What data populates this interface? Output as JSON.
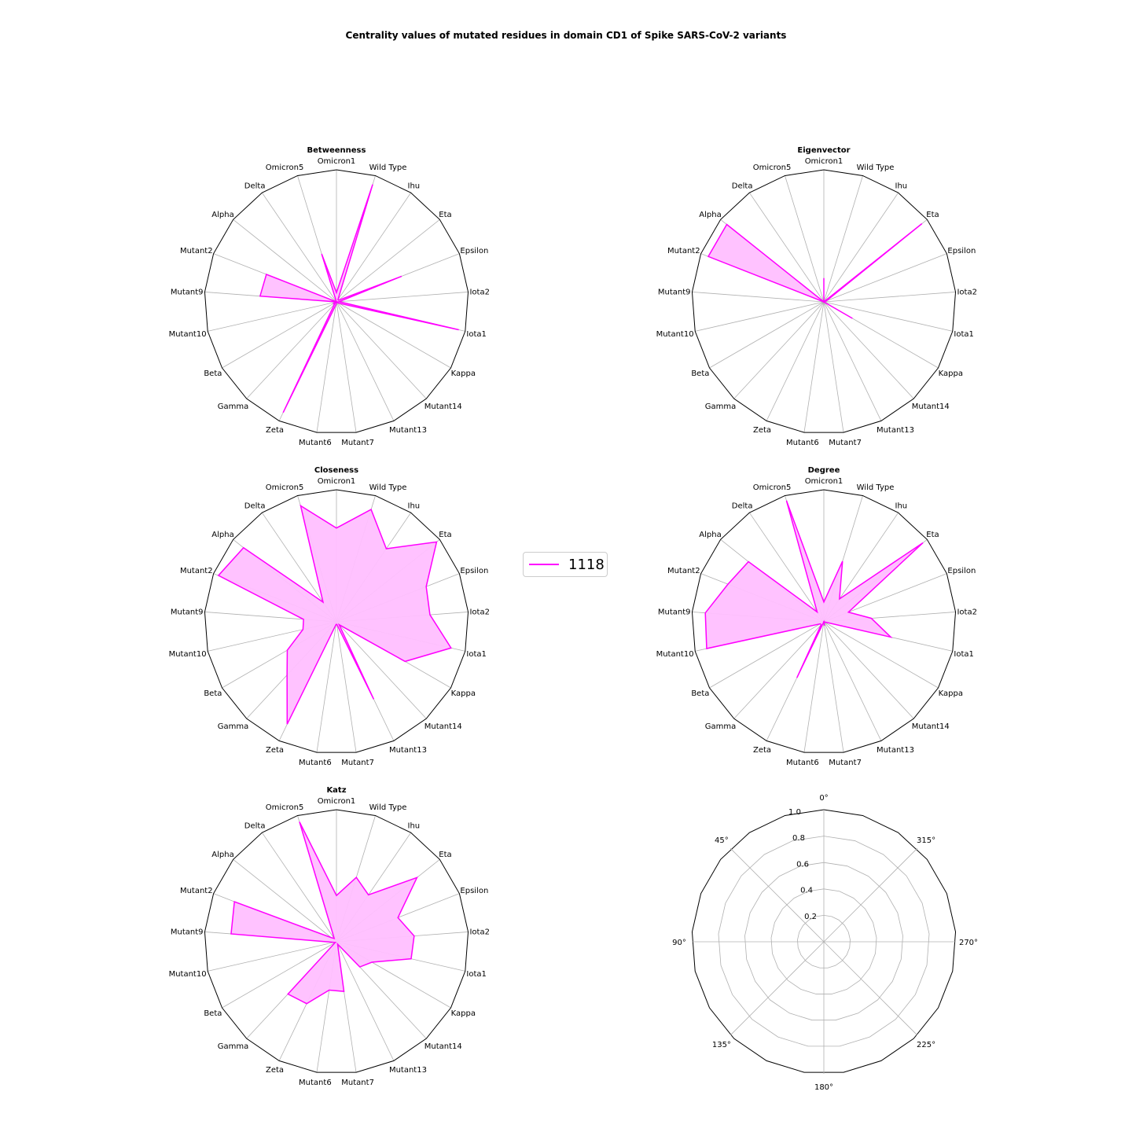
{
  "figure_title": "Centrality values of mutated residues in domain CD1 of Spike SARS-CoV-2 variants",
  "categories": [
    "Omicron1",
    "Wild Type",
    "Ihu",
    "Eta",
    "Epsilon",
    "Iota2",
    "Iota1",
    "Kappa",
    "Mutant14",
    "Mutant13",
    "Mutant7",
    "Mutant6",
    "Zeta",
    "Gamma",
    "Beta",
    "Mutant10",
    "Mutant9",
    "Mutant2",
    "Alpha",
    "Delta",
    "Omicron5"
  ],
  "legend": {
    "label": "1118",
    "color": "#ff00ff"
  },
  "colors": {
    "series": "#ff00ff",
    "fill": "#ffbfff",
    "grid": "#b0b0b0",
    "frame": "#000000"
  },
  "chart_data": [
    {
      "type": "radar",
      "title": "Betweenness",
      "ylim": [
        0,
        1
      ],
      "series": [
        {
          "name": "1118",
          "values": [
            0.07,
            0.93,
            0.02,
            0.02,
            0.53,
            0.02,
            0.95,
            0.02,
            0.0,
            0.0,
            0.0,
            0.02,
            0.93,
            0.02,
            0.03,
            0.0,
            0.58,
            0.57,
            0.0,
            0.0,
            0.38
          ]
        }
      ]
    },
    {
      "type": "radar",
      "title": "Eigenvector",
      "ylim": [
        0,
        1
      ],
      "series": [
        {
          "name": "1118",
          "values": [
            0.18,
            0.0,
            0.0,
            0.95,
            0.02,
            0.0,
            0.0,
            0.25,
            0.0,
            0.0,
            0.0,
            0.0,
            0.0,
            0.0,
            0.0,
            0.0,
            0.0,
            0.94,
            0.94,
            0.0,
            0.0
          ]
        }
      ]
    },
    {
      "type": "radar",
      "title": "Closeness",
      "ylim": [
        0,
        1
      ],
      "series": [
        {
          "name": "1118",
          "values": [
            0.71,
            0.89,
            0.67,
            0.97,
            0.73,
            0.71,
            0.89,
            0.6,
            0.03,
            0.65,
            0.02,
            0.02,
            0.86,
            0.55,
            0.43,
            0.26,
            0.25,
            0.96,
            0.9,
            0.18,
            0.92
          ]
        }
      ]
    },
    {
      "type": "radar",
      "title": "Degree",
      "ylim": [
        0,
        1
      ],
      "series": [
        {
          "name": "1118",
          "values": [
            0.15,
            0.48,
            0.21,
            0.96,
            0.2,
            0.36,
            0.52,
            0.0,
            0.0,
            0.0,
            0.03,
            0.0,
            0.47,
            0.03,
            0.03,
            0.91,
            0.9,
            0.78,
            0.73,
            0.09,
            0.96
          ]
        }
      ]
    },
    {
      "type": "radar",
      "title": "Katz",
      "ylim": [
        0,
        1
      ],
      "series": [
        {
          "name": "1118",
          "values": [
            0.35,
            0.51,
            0.43,
            0.78,
            0.5,
            0.59,
            0.58,
            0.31,
            0.26,
            0.02,
            0.38,
            0.37,
            0.52,
            0.54,
            0.01,
            0.02,
            0.8,
            0.83,
            0.05,
            0.03,
            0.95
          ]
        }
      ]
    },
    {
      "type": "radar",
      "title": "",
      "ylim": [
        0,
        1
      ],
      "empty": true,
      "angle_labels": [
        "0°",
        "315°",
        "270°",
        "225°",
        "180°",
        "135°",
        "90°",
        "45°"
      ],
      "radial_labels": [
        "0.2",
        "0.4",
        "0.6",
        "0.8",
        "1.0"
      ]
    }
  ]
}
